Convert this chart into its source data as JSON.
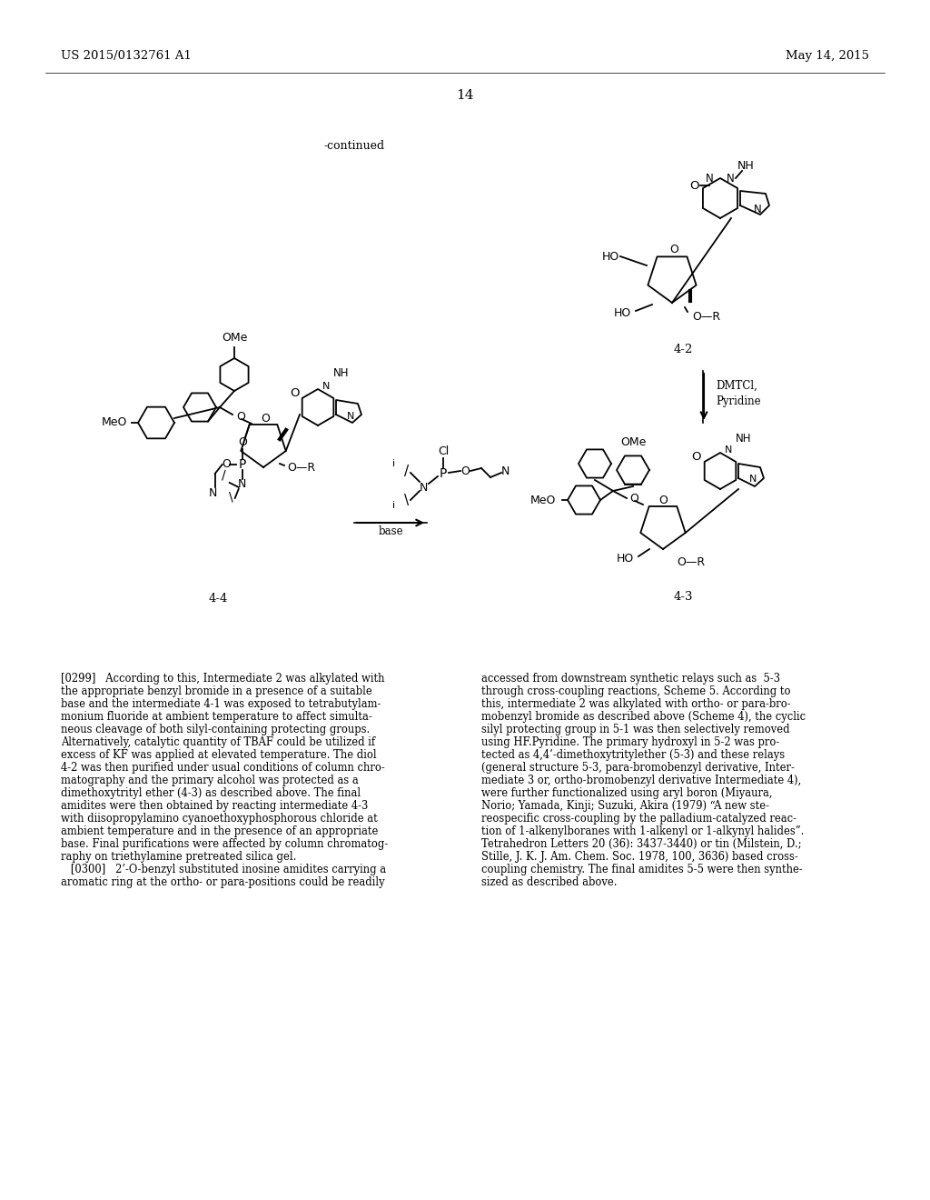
{
  "page_number": "14",
  "continued_label": "-continued",
  "header_left": "US 2015/0132761 A1",
  "header_right": "May 14, 2015",
  "background_color": "#ffffff",
  "text_color": "#000000",
  "compound_42_label": "4-2",
  "compound_43_label": "4-3",
  "compound_44_label": "4-4",
  "arrow_reagent_down": "DMTCl,\nPyridine",
  "arrow_reagent_left_label": "base",
  "figsize": [
    10.24,
    13.2
  ],
  "dpi": 100,
  "left_col_lines": [
    "[0299]   According to this, Intermediate 2 was alkylated with",
    "the appropriate benzyl bromide in a presence of a suitable",
    "base and the intermediate 4-1 was exposed to tetrabutylam-",
    "monium fluoride at ambient temperature to affect simulta-",
    "neous cleavage of both silyl-containing protecting groups.",
    "Alternatively, catalytic quantity of TBAF could be utilized if",
    "excess of KF was applied at elevated temperature. The diol",
    "4-2 was then purified under usual conditions of column chro-",
    "matography and the primary alcohol was protected as a",
    "dimethoxytrityl ether (4-3) as described above. The final",
    "amidites were then obtained by reacting intermediate 4-3",
    "with diisopropylamino cyanoethoxyphosphorous chloride at",
    "ambient temperature and in the presence of an appropriate",
    "base. Final purifications were affected by column chromatog-",
    "raphy on triethylamine pretreated silica gel.",
    "   [0300]   2’-O-benzyl substituted inosine amidites carrying a",
    "aromatic ring at the ortho- or para-positions could be readily"
  ],
  "right_col_lines": [
    "accessed from downstream synthetic relays such as  5-3",
    "through cross-coupling reactions, Scheme 5. According to",
    "this, intermediate 2 was alkylated with ortho- or para-bro-",
    "mobenzyl bromide as described above (Scheme 4), the cyclic",
    "silyl protecting group in 5-1 was then selectively removed",
    "using HF.Pyridine. The primary hydroxyl in 5-2 was pro-",
    "tected as 4,4’-dimethoxytritylether (5-3) and these relays",
    "(general structure 5-3, para-bromobenzyl derivative, Inter-",
    "mediate 3 or, ortho-bromobenzyl derivative Intermediate 4),",
    "were further functionalized using aryl boron (Miyaura,",
    "Norio; Yamada, Kinji; Suzuki, Akira (1979) “A new ste-",
    "reospecific cross-coupling by the palladium-catalyzed reac-",
    "tion of 1-alkenylboranes with 1-alkenyl or 1-alkynyl halides”.",
    "Tetrahedron Letters 20 (36): 3437-3440) or tin (Milstein, D.;",
    "Stille, J. K. J. Am. Chem. Soc. 1978, 100, 3636) based cross-",
    "coupling chemistry. The final amidites 5-5 were then synthe-",
    "sized as described above."
  ]
}
